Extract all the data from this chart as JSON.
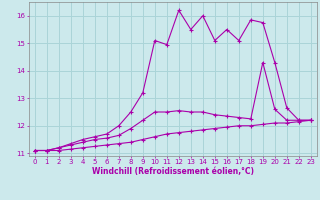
{
  "xlabel": "Windchill (Refroidissement éolien,°C)",
  "background_color": "#cce9ec",
  "grid_color": "#aad4d8",
  "line_color": "#aa00aa",
  "xlim": [
    -0.5,
    23.5
  ],
  "ylim": [
    10.9,
    16.5
  ],
  "yticks": [
    11,
    12,
    13,
    14,
    15,
    16
  ],
  "xticks": [
    0,
    1,
    2,
    3,
    4,
    5,
    6,
    7,
    8,
    9,
    10,
    11,
    12,
    13,
    14,
    15,
    16,
    17,
    18,
    19,
    20,
    21,
    22,
    23
  ],
  "line1_x": [
    0,
    1,
    2,
    3,
    4,
    5,
    6,
    7,
    8,
    9,
    10,
    11,
    12,
    13,
    14,
    15,
    16,
    17,
    18,
    19,
    20,
    21,
    22,
    23
  ],
  "line1_y": [
    11.1,
    11.1,
    11.1,
    11.15,
    11.2,
    11.25,
    11.3,
    11.35,
    11.4,
    11.5,
    11.6,
    11.7,
    11.75,
    11.8,
    11.85,
    11.9,
    11.95,
    12.0,
    12.0,
    12.05,
    12.1,
    12.1,
    12.15,
    12.2
  ],
  "line2_x": [
    0,
    1,
    2,
    3,
    4,
    5,
    6,
    7,
    8,
    9,
    10,
    11,
    12,
    13,
    14,
    15,
    16,
    17,
    18,
    19,
    20,
    21,
    22,
    23
  ],
  "line2_y": [
    11.1,
    11.1,
    11.2,
    11.3,
    11.4,
    11.5,
    11.55,
    11.65,
    11.9,
    12.2,
    12.5,
    12.5,
    12.55,
    12.5,
    12.5,
    12.4,
    12.35,
    12.3,
    12.25,
    14.3,
    12.6,
    12.2,
    12.2,
    12.2
  ],
  "line3_x": [
    0,
    1,
    2,
    3,
    4,
    5,
    6,
    7,
    8,
    9,
    10,
    11,
    12,
    13,
    14,
    15,
    16,
    17,
    18,
    19,
    20,
    21,
    22,
    23
  ],
  "line3_y": [
    11.1,
    11.1,
    11.2,
    11.35,
    11.5,
    11.6,
    11.7,
    12.0,
    12.5,
    13.2,
    15.1,
    14.95,
    16.2,
    15.5,
    16.0,
    15.1,
    15.5,
    15.1,
    15.85,
    15.75,
    14.3,
    12.65,
    12.2,
    12.2
  ]
}
